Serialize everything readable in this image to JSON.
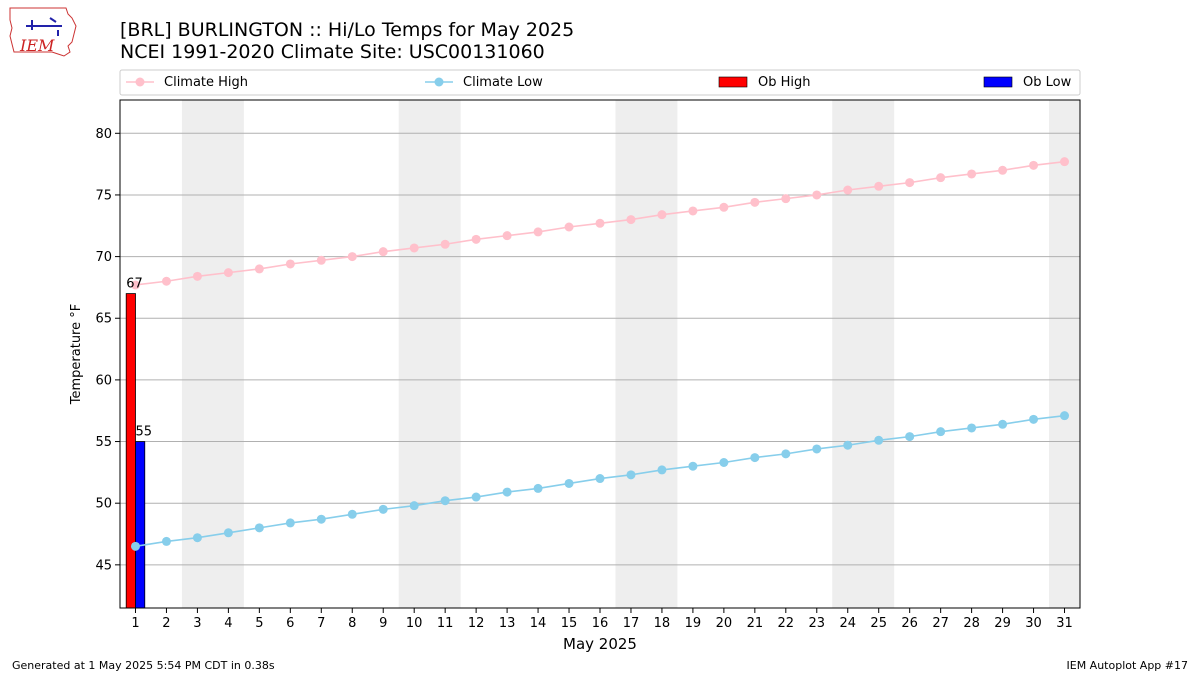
{
  "logo": {
    "text": "IEM"
  },
  "title_line1": "[BRL] BURLINGTON :: Hi/Lo Temps for May 2025",
  "title_line2": "NCEI 1991-2020 Climate Site: USC00131060",
  "footer_left": "Generated at 1 May 2025 5:54 PM CDT in 0.38s",
  "footer_right": "IEM Autoplot App #17",
  "colors": {
    "climate_high": "#ffc0cb",
    "climate_low": "#87ceeb",
    "ob_high": "#ff0000",
    "ob_low": "#0000ff",
    "weekend_band": "#eeeeee",
    "grid": "#b0b0b0"
  },
  "chart_data": {
    "type": "bar",
    "xlabel": "May 2025",
    "ylabel": "Temperature °F",
    "xlim": [
      0.5,
      31.5
    ],
    "ylim": [
      41.5,
      82.7
    ],
    "yticks": [
      45,
      50,
      55,
      60,
      65,
      70,
      75,
      80
    ],
    "x": [
      1,
      2,
      3,
      4,
      5,
      6,
      7,
      8,
      9,
      10,
      11,
      12,
      13,
      14,
      15,
      16,
      17,
      18,
      19,
      20,
      21,
      22,
      23,
      24,
      25,
      26,
      27,
      28,
      29,
      30,
      31
    ],
    "legend": [
      "Climate High",
      "Climate Low",
      "Ob High",
      "Ob Low"
    ],
    "legend_position": "top",
    "grid": "horizontal",
    "weekend_bands": [
      [
        2.5,
        4.5
      ],
      [
        9.5,
        11.5
      ],
      [
        16.5,
        18.5
      ],
      [
        23.5,
        25.5
      ],
      [
        30.5,
        31.5
      ]
    ],
    "series": [
      {
        "name": "Climate High",
        "kind": "line",
        "values": [
          67.7,
          68.0,
          68.4,
          68.7,
          69.0,
          69.4,
          69.7,
          70.0,
          70.4,
          70.7,
          71.0,
          71.4,
          71.7,
          72.0,
          72.4,
          72.7,
          73.0,
          73.4,
          73.7,
          74.0,
          74.4,
          74.7,
          75.0,
          75.4,
          75.7,
          76.0,
          76.4,
          76.7,
          77.0,
          77.4,
          77.7
        ]
      },
      {
        "name": "Climate Low",
        "kind": "line",
        "values": [
          46.5,
          46.9,
          47.2,
          47.6,
          48.0,
          48.4,
          48.7,
          49.1,
          49.5,
          49.8,
          50.2,
          50.5,
          50.9,
          51.2,
          51.6,
          52.0,
          52.3,
          52.7,
          53.0,
          53.3,
          53.7,
          54.0,
          54.4,
          54.7,
          55.1,
          55.4,
          55.8,
          56.1,
          56.4,
          56.8,
          57.1
        ]
      },
      {
        "name": "Ob High",
        "kind": "bar",
        "x": [
          1
        ],
        "values": [
          67
        ],
        "labels": [
          "67"
        ]
      },
      {
        "name": "Ob Low",
        "kind": "bar",
        "x": [
          1
        ],
        "values": [
          55
        ],
        "labels": [
          "55"
        ]
      }
    ]
  }
}
